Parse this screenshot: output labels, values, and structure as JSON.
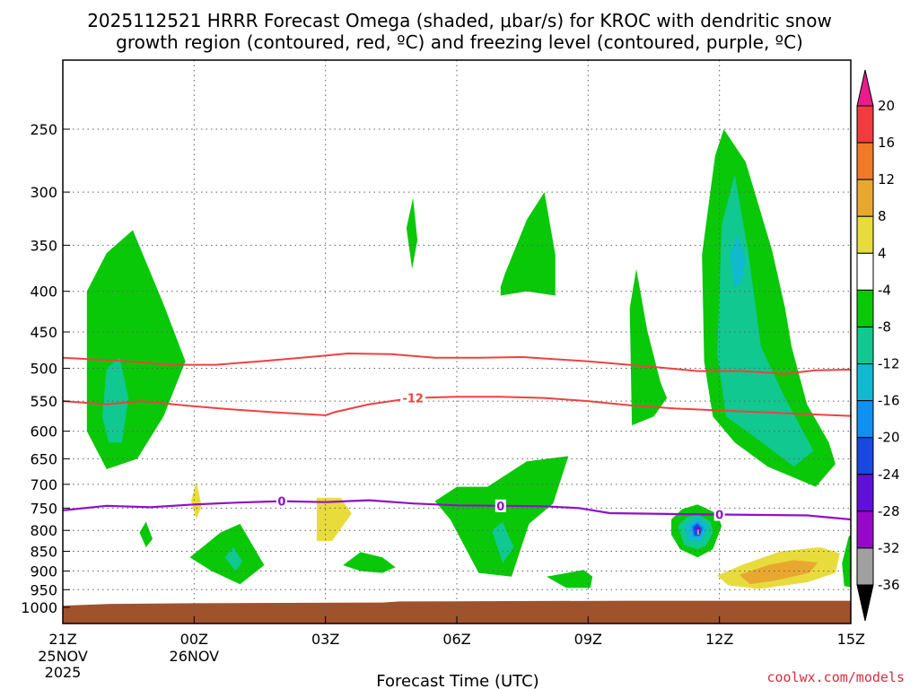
{
  "title_line1": "2025112521 HRRR Forecast Omega (shaded, μbar/s) for KROC with dendritic snow",
  "title_line2": "growth region (contoured, red, ºC) and freezing level (contoured, purple, ºC)",
  "credit": "coolwx.com/models",
  "chart_data": {
    "type": "heatmap",
    "xlabel": "Forecast Time (UTC)",
    "ylabel": "",
    "x_range": [
      0,
      18
    ],
    "y_range": [
      1050,
      200
    ],
    "y_scale": "log-pressure",
    "grid": true,
    "x_ticks": [
      {
        "x": 0,
        "label": "21Z",
        "sub1": "25NOV",
        "sub2": "2025"
      },
      {
        "x": 3,
        "label": "00Z",
        "sub1": "26NOV",
        "sub2": ""
      },
      {
        "x": 6,
        "label": "03Z",
        "sub1": "",
        "sub2": ""
      },
      {
        "x": 9,
        "label": "06Z",
        "sub1": "",
        "sub2": ""
      },
      {
        "x": 12,
        "label": "09Z",
        "sub1": "",
        "sub2": ""
      },
      {
        "x": 15,
        "label": "12Z",
        "sub1": "",
        "sub2": ""
      },
      {
        "x": 18,
        "label": "15Z",
        "sub1": "",
        "sub2": ""
      }
    ],
    "y_ticks": [
      250,
      300,
      350,
      400,
      450,
      500,
      550,
      600,
      650,
      700,
      750,
      800,
      850,
      900,
      950,
      1000
    ],
    "colorbar": {
      "ticks": [
        "20",
        "16",
        "12",
        "8",
        "4",
        "-4",
        "-8",
        "-12",
        "-16",
        "-20",
        "-24",
        "-28",
        "-32",
        "-36"
      ],
      "colors": [
        "#e81c8c",
        "#f03c3c",
        "#f07a28",
        "#e8a830",
        "#e8dc3c",
        "#ffffff",
        "#08c808",
        "#10c890",
        "#10b8d0",
        "#1090f0",
        "#1848e0",
        "#6010d8",
        "#9808c8",
        "#a0a0a0",
        "#000000"
      ]
    },
    "regions": [
      {
        "level": -4,
        "color": "#08c808",
        "points": [
          [
            0.55,
            600
          ],
          [
            0.55,
            400
          ],
          [
            1.0,
            358
          ],
          [
            1.6,
            335
          ],
          [
            2.3,
            415
          ],
          [
            2.8,
            490
          ],
          [
            2.3,
            575
          ],
          [
            1.7,
            650
          ],
          [
            1.0,
            670
          ]
        ]
      },
      {
        "level": -8,
        "color": "#10c890",
        "points": [
          [
            0.9,
            575
          ],
          [
            1.0,
            500
          ],
          [
            1.3,
            485
          ],
          [
            1.5,
            545
          ],
          [
            1.35,
            620
          ],
          [
            1.05,
            620
          ]
        ]
      },
      {
        "level": -4,
        "color": "#08c808",
        "points": [
          [
            1.75,
            805
          ],
          [
            1.9,
            780
          ],
          [
            2.05,
            820
          ],
          [
            1.9,
            840
          ]
        ]
      },
      {
        "level": 4,
        "color": "#e8dc3c",
        "points": [
          [
            2.93,
            735
          ],
          [
            3.05,
            695
          ],
          [
            3.17,
            745
          ],
          [
            3.05,
            775
          ]
        ]
      },
      {
        "level": -4,
        "color": "#08c808",
        "points": [
          [
            2.9,
            865
          ],
          [
            3.6,
            805
          ],
          [
            4.05,
            785
          ],
          [
            4.6,
            885
          ],
          [
            4.05,
            935
          ],
          [
            3.4,
            900
          ]
        ]
      },
      {
        "level": -8,
        "color": "#10c890",
        "points": [
          [
            3.7,
            865
          ],
          [
            3.9,
            840
          ],
          [
            4.1,
            875
          ],
          [
            3.95,
            900
          ]
        ]
      },
      {
        "level": 4,
        "color": "#e8dc3c",
        "points": [
          [
            5.8,
            728
          ],
          [
            6.35,
            728
          ],
          [
            6.6,
            762
          ],
          [
            6.15,
            825
          ],
          [
            5.8,
            825
          ]
        ]
      },
      {
        "level": -4,
        "color": "#08c808",
        "points": [
          [
            6.4,
            885
          ],
          [
            6.8,
            852
          ],
          [
            7.3,
            865
          ],
          [
            7.6,
            890
          ],
          [
            7.3,
            905
          ],
          [
            6.8,
            900
          ]
        ]
      },
      {
        "level": -4,
        "color": "#08c808",
        "points": [
          [
            7.85,
            333
          ],
          [
            8.0,
            305
          ],
          [
            8.1,
            345
          ],
          [
            7.98,
            375
          ]
        ]
      },
      {
        "level": -4,
        "color": "#08c808",
        "points": [
          [
            8.5,
            735
          ],
          [
            9.0,
            705
          ],
          [
            9.7,
            705
          ],
          [
            10.6,
            655
          ],
          [
            11.55,
            645
          ],
          [
            11.2,
            740
          ],
          [
            10.65,
            785
          ],
          [
            10.25,
            915
          ],
          [
            9.5,
            905
          ],
          [
            8.85,
            775
          ]
        ]
      },
      {
        "level": -8,
        "color": "#10c890",
        "points": [
          [
            9.8,
            800
          ],
          [
            10.05,
            780
          ],
          [
            10.3,
            840
          ],
          [
            10.05,
            880
          ]
        ]
      },
      {
        "level": -4,
        "color": "#08c808",
        "points": [
          [
            10.0,
            395
          ],
          [
            10.1,
            380
          ],
          [
            10.6,
            325
          ],
          [
            11.0,
            300
          ],
          [
            11.25,
            360
          ],
          [
            11.25,
            405
          ],
          [
            10.6,
            400
          ],
          [
            10.0,
            405
          ]
        ]
      },
      {
        "level": -4,
        "color": "#08c808",
        "points": [
          [
            11.05,
            915
          ],
          [
            11.9,
            897
          ],
          [
            12.1,
            915
          ],
          [
            12.05,
            945
          ],
          [
            11.5,
            945
          ]
        ]
      },
      {
        "level": -4,
        "color": "#08c808",
        "points": [
          [
            12.95,
            420
          ],
          [
            13.1,
            375
          ],
          [
            13.35,
            448
          ],
          [
            13.65,
            520
          ],
          [
            13.8,
            545
          ],
          [
            13.5,
            575
          ],
          [
            13.0,
            590
          ]
        ]
      },
      {
        "level": -4,
        "color": "#08c808",
        "points": [
          [
            13.9,
            775
          ],
          [
            14.15,
            752
          ],
          [
            14.5,
            742
          ],
          [
            14.95,
            762
          ],
          [
            15.05,
            790
          ],
          [
            14.85,
            845
          ],
          [
            14.5,
            865
          ],
          [
            14.1,
            845
          ],
          [
            13.9,
            810
          ]
        ]
      },
      {
        "level": -8,
        "color": "#10c890",
        "points": [
          [
            14.05,
            790
          ],
          [
            14.25,
            770
          ],
          [
            14.5,
            762
          ],
          [
            14.8,
            780
          ],
          [
            14.85,
            805
          ],
          [
            14.7,
            835
          ],
          [
            14.5,
            845
          ],
          [
            14.2,
            835
          ]
        ]
      },
      {
        "level": -12,
        "color": "#10b8d0",
        "points": [
          [
            14.2,
            790
          ],
          [
            14.5,
            770
          ],
          [
            14.75,
            790
          ],
          [
            14.6,
            825
          ],
          [
            14.3,
            825
          ]
        ]
      },
      {
        "level": -16,
        "color": "#1090f0",
        "points": [
          [
            14.35,
            790
          ],
          [
            14.5,
            780
          ],
          [
            14.65,
            795
          ],
          [
            14.55,
            815
          ],
          [
            14.4,
            815
          ]
        ]
      },
      {
        "level": -20,
        "color": "#1848e0",
        "points": [
          [
            14.4,
            792
          ],
          [
            14.5,
            785
          ],
          [
            14.6,
            797
          ],
          [
            14.55,
            812
          ],
          [
            14.43,
            812
          ]
        ]
      },
      {
        "level": -24,
        "color": "#6010d8",
        "points": [
          [
            14.45,
            795
          ],
          [
            14.55,
            792
          ],
          [
            14.58,
            805
          ],
          [
            14.5,
            810
          ]
        ]
      },
      {
        "level": -32,
        "color": "#a0a0a0",
        "points": [
          [
            14.49,
            798
          ],
          [
            14.53,
            798
          ],
          [
            14.54,
            810
          ],
          [
            14.49,
            810
          ]
        ]
      },
      {
        "level": -4,
        "color": "#08c808",
        "points": [
          [
            14.65,
            490
          ],
          [
            14.6,
            360
          ],
          [
            14.9,
            270
          ],
          [
            15.1,
            250
          ],
          [
            15.6,
            275
          ],
          [
            16.2,
            355
          ],
          [
            16.5,
            420
          ],
          [
            16.65,
            470
          ],
          [
            17.0,
            555
          ],
          [
            17.5,
            620
          ],
          [
            17.65,
            660
          ],
          [
            17.2,
            705
          ],
          [
            16.1,
            665
          ],
          [
            15.35,
            620
          ],
          [
            14.85,
            575
          ]
        ]
      },
      {
        "level": -8,
        "color": "#10c890",
        "points": [
          [
            14.95,
            480
          ],
          [
            15.05,
            330
          ],
          [
            15.35,
            285
          ],
          [
            15.65,
            355
          ],
          [
            15.95,
            470
          ],
          [
            16.5,
            545
          ],
          [
            17.15,
            635
          ],
          [
            16.7,
            665
          ],
          [
            15.8,
            610
          ],
          [
            15.15,
            575
          ]
        ]
      },
      {
        "level": -12,
        "color": "#10b8d0",
        "points": [
          [
            15.25,
            360
          ],
          [
            15.4,
            340
          ],
          [
            15.6,
            365
          ],
          [
            15.5,
            390
          ],
          [
            15.35,
            395
          ]
        ]
      },
      {
        "level": 4,
        "color": "#e8dc3c",
        "points": [
          [
            14.95,
            912
          ],
          [
            15.5,
            885
          ],
          [
            16.4,
            850
          ],
          [
            17.3,
            840
          ],
          [
            17.75,
            855
          ],
          [
            17.65,
            905
          ],
          [
            17.0,
            930
          ],
          [
            15.9,
            948
          ],
          [
            15.2,
            938
          ]
        ]
      },
      {
        "level": 8,
        "color": "#e8a830",
        "points": [
          [
            15.45,
            910
          ],
          [
            16.1,
            885
          ],
          [
            16.7,
            872
          ],
          [
            17.25,
            878
          ],
          [
            17.05,
            905
          ],
          [
            16.3,
            925
          ],
          [
            15.7,
            935
          ]
        ]
      },
      {
        "level": -4,
        "color": "#08c808",
        "points": [
          [
            17.8,
            880
          ],
          [
            17.95,
            815
          ],
          [
            18.1,
            800
          ],
          [
            18.1,
            945
          ],
          [
            17.85,
            940
          ]
        ]
      }
    ],
    "terrain": {
      "color": "#a0522d",
      "points": [
        [
          0,
          1050
        ],
        [
          0,
          995
        ],
        [
          1.1,
          990
        ],
        [
          3.0,
          988
        ],
        [
          7.3,
          986
        ],
        [
          7.7,
          983
        ],
        [
          13.0,
          981
        ],
        [
          18,
          981
        ],
        [
          18,
          1050
        ]
      ]
    },
    "dgz_contours": [
      {
        "value": "-12",
        "color": "#f04040",
        "points": [
          [
            0,
            485
          ],
          [
            1.5,
            490
          ],
          [
            2.5,
            495
          ],
          [
            3.5,
            495
          ],
          [
            4.5,
            490
          ],
          [
            5.8,
            483
          ],
          [
            6.5,
            479
          ],
          [
            7.5,
            480
          ],
          [
            8.5,
            485
          ],
          [
            9.5,
            485
          ],
          [
            10.5,
            484
          ],
          [
            12.0,
            490
          ],
          [
            13.5,
            498
          ],
          [
            14.5,
            504
          ],
          [
            15.5,
            504
          ],
          [
            16.5,
            508
          ],
          [
            17.2,
            503
          ],
          [
            18,
            502
          ]
        ]
      },
      {
        "value": "-12",
        "color": "#f04040",
        "points": [
          [
            0,
            550
          ],
          [
            1.0,
            555
          ],
          [
            1.8,
            550
          ],
          [
            2.8,
            557
          ],
          [
            3.8,
            563
          ],
          [
            4.8,
            568
          ],
          [
            6.0,
            573
          ],
          [
            6.2,
            568
          ],
          [
            7.0,
            555
          ],
          [
            8.0,
            545
          ],
          [
            9.0,
            543
          ],
          [
            10.0,
            543
          ],
          [
            11.0,
            545
          ],
          [
            12.0,
            550
          ],
          [
            13.0,
            557
          ],
          [
            14.0,
            562
          ],
          [
            15.0,
            565
          ],
          [
            16.0,
            568
          ],
          [
            17.0,
            571
          ],
          [
            18,
            574
          ]
        ]
      }
    ],
    "frz_contours": [
      {
        "value": "0",
        "color": "#9010c8",
        "points": [
          [
            0,
            755
          ],
          [
            1.0,
            745
          ],
          [
            2.0,
            748
          ],
          [
            3.0,
            742
          ],
          [
            4.0,
            738
          ],
          [
            5.0,
            735
          ],
          [
            6.0,
            737
          ],
          [
            7.0,
            733
          ],
          [
            8.0,
            740
          ],
          [
            9.0,
            744
          ],
          [
            10.0,
            745
          ],
          [
            11.0,
            746
          ],
          [
            11.8,
            750
          ],
          [
            12.5,
            761
          ],
          [
            14.0,
            763
          ],
          [
            15.0,
            764
          ],
          [
            16.0,
            765
          ],
          [
            17.0,
            766
          ],
          [
            18,
            775
          ]
        ]
      }
    ],
    "contour_labels": [
      {
        "text": "-12",
        "x": 8.0,
        "p": 545,
        "color": "#f04040"
      },
      {
        "text": "0",
        "x": 5.0,
        "p": 735,
        "color": "#9010c8"
      },
      {
        "text": "0",
        "x": 10.0,
        "p": 745,
        "color": "#9010c8"
      },
      {
        "text": "0",
        "x": 15.0,
        "p": 764,
        "color": "#9010c8"
      }
    ]
  }
}
